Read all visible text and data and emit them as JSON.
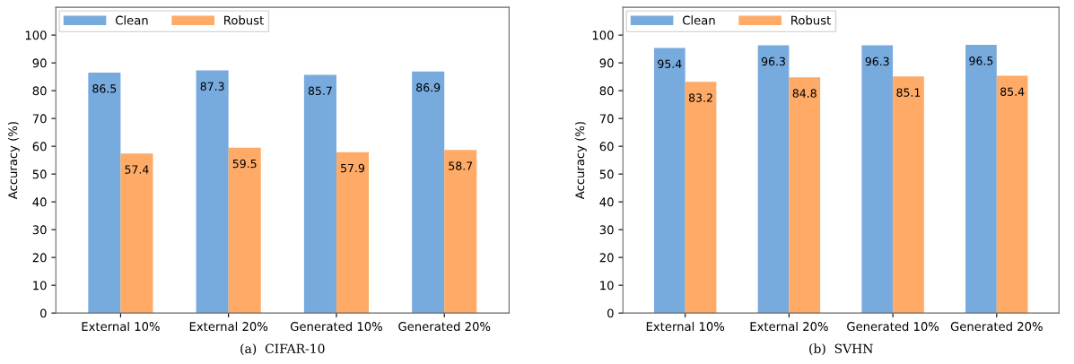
{
  "chart_data": [
    {
      "type": "bar",
      "title": "(a)  CIFAR-10",
      "ylabel": "Accuracy (%)",
      "categories": [
        "External 10%",
        "External 20%",
        "Generated 10%",
        "Generated 20%"
      ],
      "series": [
        {
          "name": "Clean",
          "color": "#77aadd",
          "values": [
            86.5,
            87.3,
            85.7,
            86.9
          ]
        },
        {
          "name": "Robust",
          "color": "#ffaa66",
          "values": [
            57.4,
            59.5,
            57.9,
            58.7
          ]
        }
      ],
      "ylim": [
        0,
        110
      ],
      "yticks": [
        0,
        10,
        20,
        30,
        40,
        50,
        60,
        70,
        80,
        90,
        100
      ],
      "data_labels": true,
      "legend": "top left",
      "grid": false
    },
    {
      "type": "bar",
      "title": "(b)  SVHN",
      "ylabel": "Accuracy (%)",
      "categories": [
        "External 10%",
        "External 20%",
        "Generated 10%",
        "Generated 20%"
      ],
      "series": [
        {
          "name": "Clean",
          "color": "#77aadd",
          "values": [
            95.4,
            96.3,
            96.3,
            96.5
          ]
        },
        {
          "name": "Robust",
          "color": "#ffaa66",
          "values": [
            83.2,
            84.8,
            85.1,
            85.4
          ]
        }
      ],
      "ylim": [
        0,
        110
      ],
      "yticks": [
        0,
        10,
        20,
        30,
        40,
        50,
        60,
        70,
        80,
        90,
        100
      ],
      "data_labels": true,
      "legend": "top left",
      "grid": false
    }
  ]
}
